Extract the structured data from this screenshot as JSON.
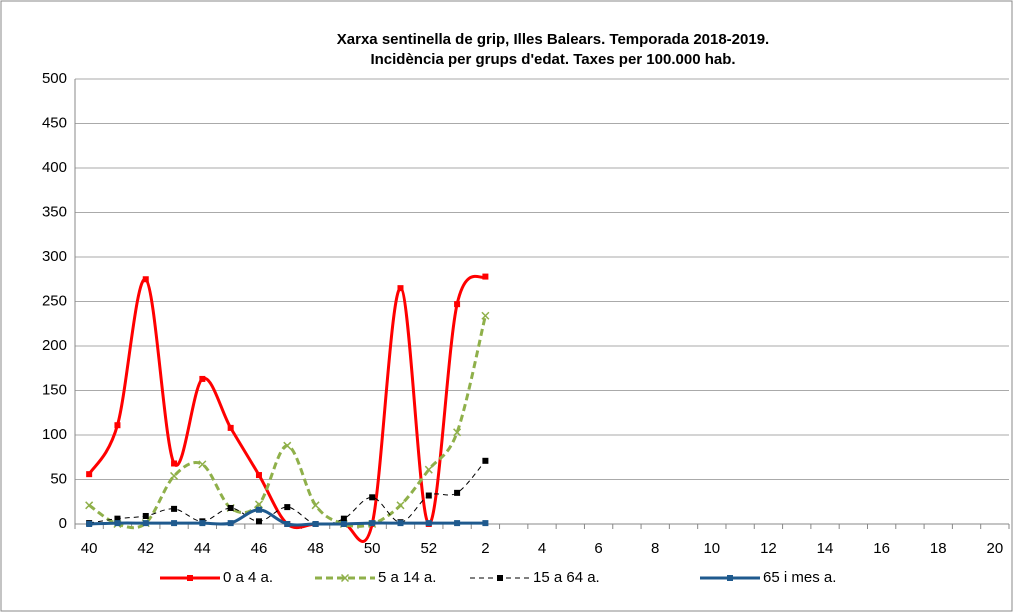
{
  "chart_data": {
    "type": "line",
    "title": "Xarxa sentinella de grip, Illes Balears. Temporada 2018-2019.",
    "subtitle": "Incidència per grups d'edat. Taxes per 100.000 hab.",
    "categories": [
      "40",
      null,
      "42",
      null,
      "44",
      null,
      "46",
      null,
      "48",
      null,
      "50",
      null,
      "52",
      null,
      "2",
      null,
      "4",
      null,
      "6",
      null,
      "8",
      null,
      "10",
      null,
      "12",
      null,
      "14",
      null,
      "16",
      null,
      "18",
      null,
      "20"
    ],
    "series": [
      {
        "name": "0 a 4 a.",
        "color": "#ff0000",
        "marker": "square",
        "dash": "none",
        "width": 3,
        "values": [
          56,
          111,
          275,
          68,
          163,
          108,
          55,
          0,
          0,
          0,
          0,
          265,
          0,
          247,
          278,
          null,
          null,
          null,
          null,
          null,
          null,
          null,
          null,
          null,
          null,
          null,
          null,
          null,
          null,
          null,
          null,
          null,
          null
        ]
      },
      {
        "name": "5 a 14 a.",
        "color": "#8fb04a",
        "marker": "x",
        "dash": "7 4",
        "width": 3,
        "values": [
          21,
          0,
          1,
          54,
          67,
          18,
          22,
          88,
          21,
          0,
          0,
          21,
          61,
          103,
          234,
          null,
          null,
          null,
          null,
          null,
          null,
          null,
          null,
          null,
          null,
          null,
          null,
          null,
          null,
          null,
          null,
          null,
          null
        ]
      },
      {
        "name": "15 a 64 a.",
        "color": "#000000",
        "marker": "square",
        "dash": "5 4",
        "width": 1,
        "values": [
          1,
          6,
          9,
          17,
          3,
          18,
          3,
          19,
          0,
          6,
          30,
          2,
          32,
          35,
          71,
          null,
          null,
          null,
          null,
          null,
          null,
          null,
          null,
          null,
          null,
          null,
          null,
          null,
          null,
          null,
          null,
          null,
          null
        ]
      },
      {
        "name": "65 i mes a.",
        "color": "#1f5a8e",
        "marker": "square",
        "dash": "none",
        "width": 3,
        "values": [
          0,
          1,
          1,
          1,
          1,
          1,
          16,
          0,
          0,
          0,
          1,
          1,
          1,
          1,
          1,
          null,
          null,
          null,
          null,
          null,
          null,
          null,
          null,
          null,
          null,
          null,
          null,
          null,
          null,
          null,
          null,
          null,
          null
        ]
      }
    ],
    "ylim": [
      0,
      500
    ],
    "yticks": [
      0,
      50,
      100,
      150,
      200,
      250,
      300,
      350,
      400,
      450,
      500
    ],
    "grid": true,
    "smooth": true,
    "legend": "bottom"
  }
}
